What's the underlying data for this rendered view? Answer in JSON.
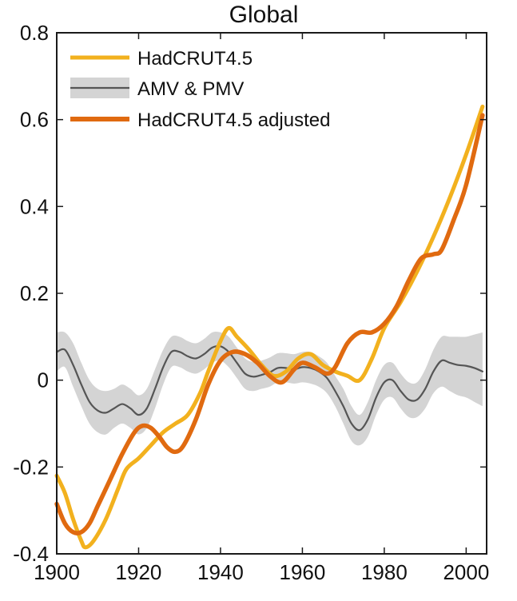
{
  "chart_data": {
    "type": "line",
    "title": "Global",
    "xlabel": "",
    "ylabel": "",
    "xlim": [
      1900,
      2005
    ],
    "ylim": [
      -0.4,
      0.8
    ],
    "xticks": [
      1900,
      1920,
      1940,
      1960,
      1980,
      2000
    ],
    "yticks": [
      -0.4,
      -0.2,
      0,
      0.2,
      0.4,
      0.6,
      0.8
    ],
    "ytick_labels": [
      "-0.4",
      "-0.2",
      "0",
      "0.2",
      "0.4",
      "0.6",
      "0.8"
    ],
    "grid": false,
    "legend_position": "top-left",
    "series": [
      {
        "name": "HadCRUT4.5",
        "color": "#F2B11E",
        "x": [
          1900,
          1902,
          1904,
          1906,
          1907,
          1909,
          1912,
          1915,
          1917,
          1920,
          1923,
          1926,
          1929,
          1932,
          1935,
          1937,
          1940,
          1942,
          1944,
          1947,
          1950,
          1953,
          1956,
          1959,
          1962,
          1965,
          1968,
          1971,
          1974,
          1977,
          1980,
          1984,
          1988,
          1992,
          1996,
          2000,
          2004
        ],
        "values": [
          -0.22,
          -0.26,
          -0.32,
          -0.37,
          -0.385,
          -0.37,
          -0.32,
          -0.25,
          -0.205,
          -0.18,
          -0.15,
          -0.12,
          -0.1,
          -0.08,
          -0.03,
          0.02,
          0.09,
          0.12,
          0.1,
          0.07,
          0.035,
          0.01,
          0.02,
          0.05,
          0.06,
          0.035,
          0.02,
          0.01,
          0.0,
          0.05,
          0.12,
          0.18,
          0.25,
          0.33,
          0.42,
          0.52,
          0.63
        ]
      },
      {
        "name": "AMV & PMV",
        "color": "#555555",
        "band_color": "#D4D4D4",
        "x": [
          1900,
          1902,
          1904,
          1906,
          1908,
          1910,
          1912,
          1914,
          1916,
          1918,
          1920,
          1922,
          1924,
          1926,
          1928,
          1930,
          1932,
          1934,
          1936,
          1938,
          1940,
          1942,
          1944,
          1946,
          1948,
          1950,
          1952,
          1954,
          1956,
          1958,
          1960,
          1962,
          1964,
          1966,
          1968,
          1970,
          1972,
          1974,
          1976,
          1978,
          1980,
          1982,
          1984,
          1986,
          1988,
          1990,
          1992,
          1994,
          1996,
          1998,
          2000,
          2002,
          2004
        ],
        "values": [
          0.065,
          0.07,
          0.035,
          -0.01,
          -0.05,
          -0.07,
          -0.075,
          -0.065,
          -0.055,
          -0.065,
          -0.08,
          -0.065,
          -0.02,
          0.03,
          0.065,
          0.065,
          0.055,
          0.05,
          0.06,
          0.075,
          0.078,
          0.065,
          0.04,
          0.015,
          0.008,
          0.012,
          0.018,
          0.028,
          0.028,
          0.025,
          0.03,
          0.028,
          0.02,
          0.005,
          -0.025,
          -0.06,
          -0.1,
          -0.115,
          -0.09,
          -0.04,
          -0.005,
          0.0,
          -0.025,
          -0.045,
          -0.045,
          -0.02,
          0.02,
          0.045,
          0.04,
          0.035,
          0.033,
          0.028,
          0.02
        ],
        "lower": [
          0.02,
          0.03,
          -0.015,
          -0.06,
          -0.1,
          -0.12,
          -0.125,
          -0.11,
          -0.1,
          -0.11,
          -0.125,
          -0.11,
          -0.065,
          -0.01,
          0.03,
          0.03,
          0.02,
          0.015,
          0.025,
          0.04,
          0.045,
          0.03,
          0.005,
          -0.02,
          -0.025,
          -0.02,
          -0.015,
          -0.005,
          -0.005,
          -0.008,
          -0.005,
          -0.008,
          -0.015,
          -0.03,
          -0.06,
          -0.1,
          -0.14,
          -0.15,
          -0.13,
          -0.08,
          -0.045,
          -0.04,
          -0.065,
          -0.085,
          -0.085,
          -0.065,
          -0.03,
          -0.015,
          -0.025,
          -0.035,
          -0.04,
          -0.05,
          -0.06
        ],
        "upper": [
          0.11,
          0.11,
          0.085,
          0.04,
          0.0,
          -0.02,
          -0.025,
          -0.02,
          -0.01,
          -0.02,
          -0.035,
          -0.02,
          0.025,
          0.07,
          0.1,
          0.1,
          0.09,
          0.085,
          0.095,
          0.11,
          0.11,
          0.1,
          0.075,
          0.05,
          0.042,
          0.045,
          0.052,
          0.062,
          0.062,
          0.06,
          0.065,
          0.065,
          0.055,
          0.04,
          0.01,
          -0.02,
          -0.06,
          -0.08,
          -0.05,
          0.0,
          0.035,
          0.04,
          0.015,
          -0.005,
          -0.005,
          0.025,
          0.07,
          0.1,
          0.1,
          0.1,
          0.1,
          0.105,
          0.11
        ]
      },
      {
        "name": "HadCRUT4.5 adjusted",
        "color": "#E06A10",
        "x": [
          1900,
          1902,
          1904,
          1906,
          1908,
          1910,
          1913,
          1916,
          1919,
          1921,
          1923,
          1925,
          1927,
          1929,
          1931,
          1934,
          1937,
          1940,
          1943,
          1946,
          1949,
          1952,
          1955,
          1958,
          1960,
          1963,
          1966,
          1968,
          1971,
          1974,
          1977,
          1980,
          1983,
          1986,
          1989,
          1992,
          1994,
          1997,
          2000,
          2004
        ],
        "values": [
          -0.285,
          -0.33,
          -0.35,
          -0.35,
          -0.33,
          -0.29,
          -0.23,
          -0.17,
          -0.12,
          -0.105,
          -0.11,
          -0.13,
          -0.155,
          -0.165,
          -0.15,
          -0.09,
          -0.01,
          0.045,
          0.065,
          0.06,
          0.04,
          0.01,
          -0.005,
          0.025,
          0.04,
          0.03,
          0.015,
          0.03,
          0.085,
          0.11,
          0.11,
          0.13,
          0.17,
          0.23,
          0.28,
          0.29,
          0.3,
          0.37,
          0.45,
          0.61
        ]
      }
    ]
  }
}
